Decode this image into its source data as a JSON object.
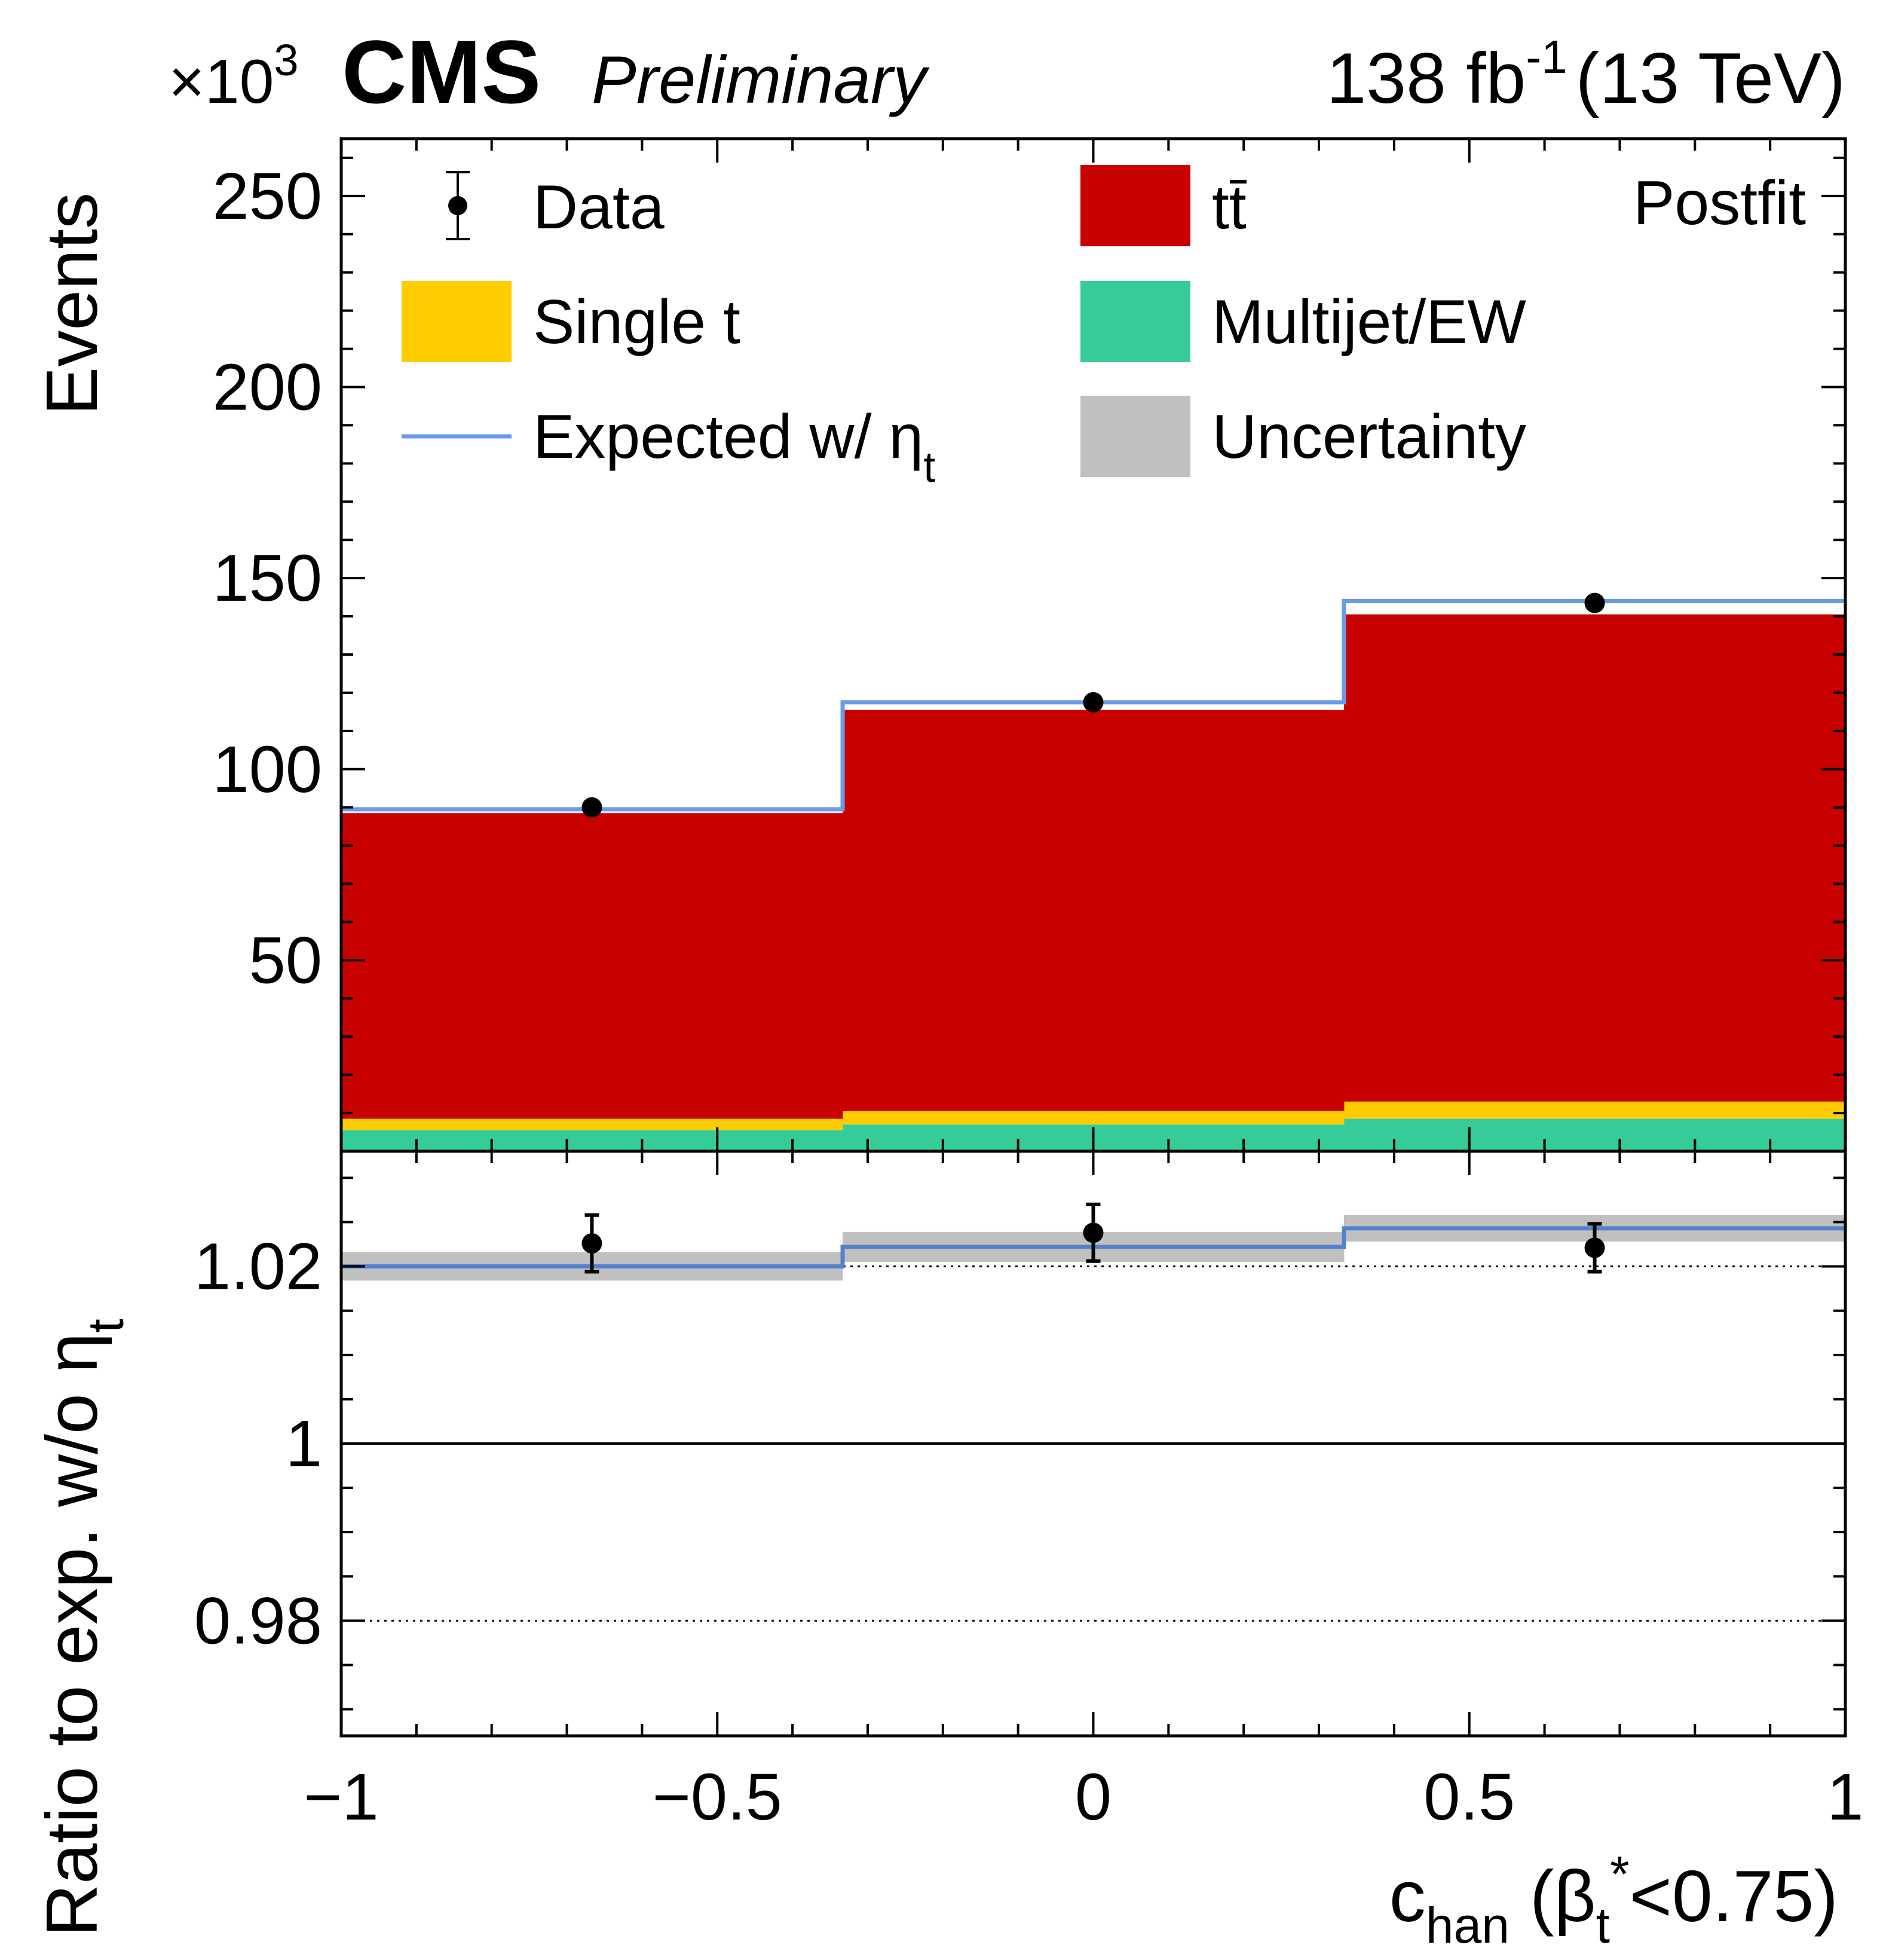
{
  "header": {
    "experiment": "CMS",
    "status": "Preliminary",
    "lumi": "138 fb",
    "lumi_sup": "-1",
    "energy": "(13 TeV)",
    "multiplier": "×10",
    "multiplier_exp": "3"
  },
  "annotation": "Postfit",
  "colors": {
    "ttbar": "#c90000",
    "single_t": "#ffcc00",
    "multijet": "#36cc99",
    "uncertainty": "#c0c0c0",
    "expected_eta": "#6b9ae8",
    "data": "#000000"
  },
  "legend": {
    "data": "Data",
    "ttbar_main": "t",
    "ttbar_bar": "t",
    "single_t": "Single t",
    "multijet": "Multijet/EW",
    "expected_main": "Expected w/ η",
    "expected_sub": "t",
    "uncertainty": "Uncertainty"
  },
  "axes": {
    "ylabel_top": "Events",
    "ylabel_bottom_main": "Ratio to exp. w/o η",
    "ylabel_bottom_sub": "t",
    "xlabel_main": "c",
    "xlabel_sub1": "han",
    "xlabel_paren": " (β",
    "xlabel_sub2": "t",
    "xlabel_sup": "*",
    "xlabel_end": "<0.75)"
  },
  "chart_data": {
    "type": "bar",
    "xlim": [
      -1,
      1
    ],
    "ylim_top": [
      0,
      265
    ],
    "ylim_bottom": [
      0.967,
      1.033
    ],
    "bin_edges": [
      -1,
      -0.3333,
      0.3333,
      1
    ],
    "x_ticks": [
      {
        "v": -1,
        "label": "−1"
      },
      {
        "v": -0.5,
        "label": "−0.5"
      },
      {
        "v": 0,
        "label": "0"
      },
      {
        "v": 0.5,
        "label": "0.5"
      },
      {
        "v": 1,
        "label": "1"
      }
    ],
    "y_ticks_top": [
      {
        "v": 50,
        "label": "50"
      },
      {
        "v": 100,
        "label": "100"
      },
      {
        "v": 150,
        "label": "150"
      },
      {
        "v": 200,
        "label": "200"
      },
      {
        "v": 250,
        "label": "250"
      }
    ],
    "y_ticks_bottom": [
      {
        "v": 0.98,
        "label": "0.98"
      },
      {
        "v": 1.0,
        "label": "1"
      },
      {
        "v": 1.02,
        "label": "1.02"
      }
    ],
    "stack": [
      {
        "name": "Multijet/EW",
        "color": "#36cc99",
        "values": [
          5.5,
          7.0,
          8.5
        ]
      },
      {
        "name": "Single t",
        "color": "#ffcc00",
        "values": [
          3.0,
          3.5,
          4.5
        ]
      },
      {
        "name": "tt̄",
        "color": "#c90000",
        "values": [
          80.0,
          105.0,
          127.5
        ]
      }
    ],
    "expected_with_eta": [
      89.5,
      117.5,
      144.0
    ],
    "data": {
      "x": [
        -0.6667,
        0.0,
        0.6667
      ],
      "y": [
        90.0,
        117.5,
        143.5
      ]
    },
    "ratio": {
      "expected_with_eta": [
        1.02,
        1.0222,
        1.0243
      ],
      "uncertainty_low": [
        1.0184,
        1.0205,
        1.0228
      ],
      "uncertainty_high": [
        1.0216,
        1.0239,
        1.0258
      ],
      "data": [
        1.0226,
        1.0238,
        1.0221
      ],
      "data_err": [
        0.0032,
        0.0032,
        0.0027
      ]
    },
    "reference_lines_bottom": [
      {
        "v": 1.0,
        "style": "solid"
      },
      {
        "v": 1.02,
        "style": "dotted"
      },
      {
        "v": 0.98,
        "style": "dotted"
      }
    ]
  }
}
